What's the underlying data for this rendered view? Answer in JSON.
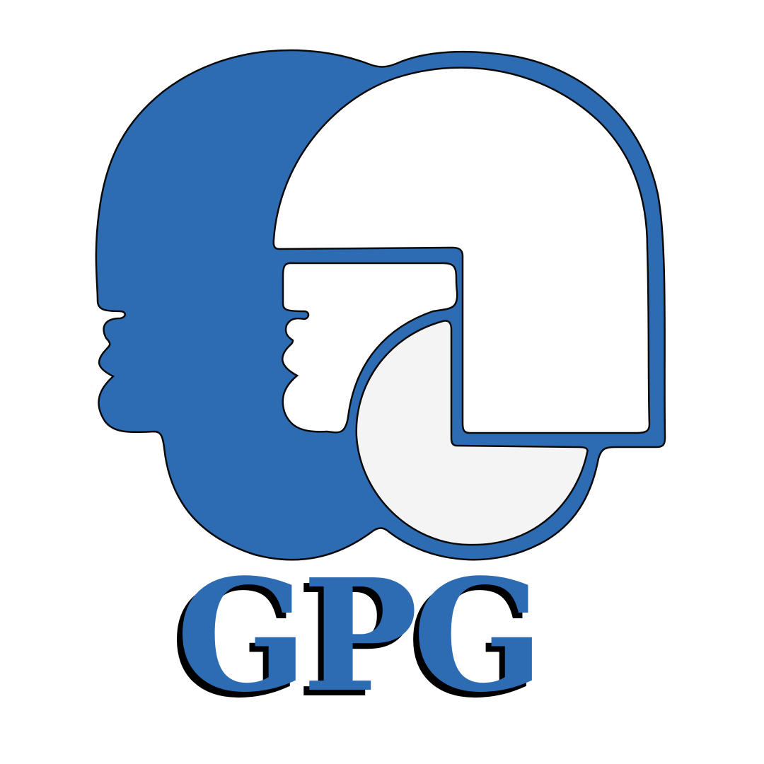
{
  "logo": {
    "wordmark": "GPG",
    "colors": {
      "primary_blue": "#2d6bb3",
      "outline": "#0a0a0a",
      "shadow": "#000000",
      "inner_white": "#ffffff",
      "inner_grey": "#f4f4f4"
    }
  }
}
